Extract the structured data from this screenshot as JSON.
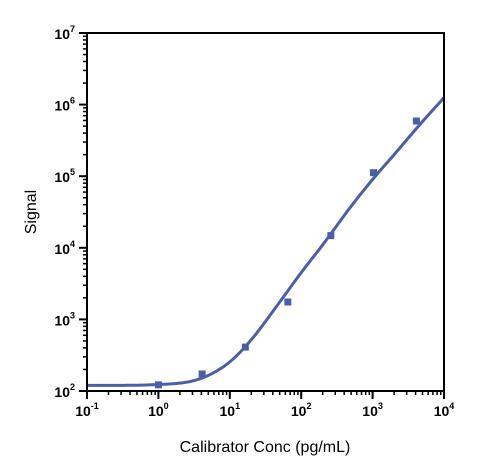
{
  "chart_data": {
    "type": "scatter",
    "title": "",
    "xlabel": "Calibrator Conc (pg/mL)",
    "ylabel": "Signal",
    "x_scale": "log",
    "y_scale": "log",
    "xlim": [
      0.1,
      10000
    ],
    "ylim": [
      100,
      10000000
    ],
    "x_ticks": [
      {
        "base": "10",
        "exp": "-1",
        "value": 0.1
      },
      {
        "base": "10",
        "exp": "0",
        "value": 1
      },
      {
        "base": "10",
        "exp": "1",
        "value": 10
      },
      {
        "base": "10",
        "exp": "2",
        "value": 100
      },
      {
        "base": "10",
        "exp": "3",
        "value": 1000
      },
      {
        "base": "10",
        "exp": "4",
        "value": 10000
      }
    ],
    "y_ticks": [
      {
        "base": "10",
        "exp": "2",
        "value": 100
      },
      {
        "base": "10",
        "exp": "3",
        "value": 1000
      },
      {
        "base": "10",
        "exp": "4",
        "value": 10000
      },
      {
        "base": "10",
        "exp": "5",
        "value": 100000
      },
      {
        "base": "10",
        "exp": "6",
        "value": 1000000
      },
      {
        "base": "10",
        "exp": "7",
        "value": 10000000
      }
    ],
    "grid": false,
    "legend": "none",
    "series": [
      {
        "kind": "points",
        "marker": "square",
        "color": "#4a5faa",
        "x": [
          1,
          4.1,
          16.5,
          65,
          260,
          1030,
          4100
        ],
        "y": [
          122,
          173,
          410,
          1750,
          14800,
          112000,
          590000
        ]
      },
      {
        "kind": "fit-curve",
        "color": "#4a5faa",
        "x": [
          0.1,
          0.3,
          1,
          2,
          3,
          5,
          10,
          20,
          50,
          100,
          200,
          500,
          1000,
          2000,
          5000,
          10000
        ],
        "y": [
          120,
          120,
          123,
          129,
          138,
          165,
          255,
          520,
          1750,
          4500,
          11000,
          38000,
          90000,
          200000,
          580000,
          1250000
        ]
      }
    ]
  }
}
